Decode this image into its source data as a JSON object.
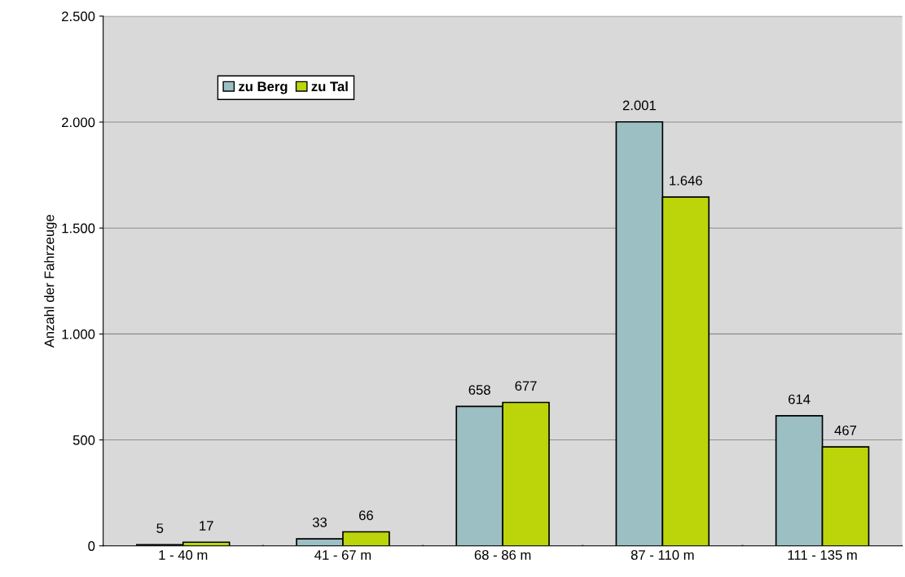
{
  "chart_data": {
    "type": "bar",
    "categories": [
      "1 - 40 m",
      "41 - 67 m",
      "68 - 86 m",
      "87 - 110 m",
      "111 - 135 m"
    ],
    "ylabel": "Anzahl der Fahrzeuge",
    "series": [
      {
        "name": "zu Berg",
        "color": "#9bbfc3",
        "values": [
          5,
          33,
          658,
          2001,
          614
        ],
        "value_labels": [
          "5",
          "33",
          "658",
          "2.001",
          "614"
        ]
      },
      {
        "name": "zu Tal",
        "color": "#bcd40a",
        "values": [
          17,
          66,
          677,
          1646,
          467
        ],
        "value_labels": [
          "17",
          "66",
          "677",
          "1.646",
          "467"
        ]
      }
    ],
    "ylim": [
      0,
      2500
    ],
    "yticks": [
      0,
      {
        "value": 500,
        "label": "500"
      },
      {
        "value": 1000,
        "label": "1.000"
      },
      {
        "value": 1500,
        "label": "1.500"
      },
      {
        "value": 2000,
        "label": "2.000"
      },
      {
        "value": 2500,
        "label": "2.500"
      }
    ],
    "grid": "y",
    "legend": "top left"
  }
}
